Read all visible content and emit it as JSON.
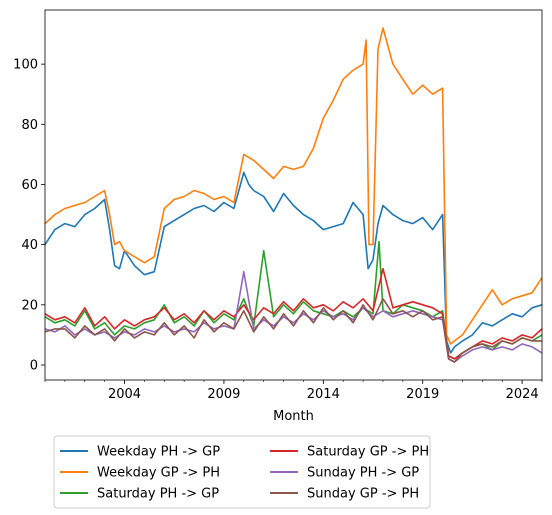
{
  "chart_data": {
    "type": "line",
    "title": "",
    "xlabel": "Month",
    "ylabel": "",
    "xlim": [
      2000.0,
      2025.0
    ],
    "ylim": [
      -5,
      118
    ],
    "x_ticks": [
      2004,
      2009,
      2014,
      2019,
      2024
    ],
    "y_ticks": [
      0,
      20,
      40,
      60,
      80,
      100
    ],
    "grid": false,
    "legend_position": "below-chart",
    "legend_columns": 2,
    "series": [
      {
        "name": "Weekday PH -> GP",
        "color": "#1f77b4",
        "x": [
          2000.0,
          2000.5,
          2001.0,
          2001.5,
          2002.0,
          2002.5,
          2003.0,
          2003.25,
          2003.5,
          2003.75,
          2004.0,
          2004.5,
          2005.0,
          2005.5,
          2006.0,
          2006.5,
          2007.0,
          2007.5,
          2008.0,
          2008.5,
          2009.0,
          2009.5,
          2010.0,
          2010.25,
          2010.5,
          2011.0,
          2011.5,
          2012.0,
          2012.5,
          2013.0,
          2013.5,
          2014.0,
          2014.5,
          2015.0,
          2015.5,
          2016.0,
          2016.25,
          2016.5,
          2016.75,
          2017.0,
          2017.5,
          2018.0,
          2018.5,
          2019.0,
          2019.5,
          2020.0,
          2020.2,
          2020.4,
          2020.6,
          2021.0,
          2021.5,
          2022.0,
          2022.5,
          2023.0,
          2023.5,
          2024.0,
          2024.5,
          2025.0
        ],
        "y": [
          40,
          45,
          47,
          46,
          50,
          52,
          55,
          45,
          33,
          32,
          38,
          33,
          30,
          31,
          46,
          48,
          50,
          52,
          53,
          51,
          54,
          52,
          64,
          60,
          58,
          56,
          51,
          57,
          53,
          50,
          48,
          45,
          46,
          47,
          54,
          50,
          32,
          35,
          47,
          53,
          50,
          48,
          47,
          49,
          45,
          50,
          8,
          4,
          6,
          8,
          10,
          14,
          13,
          15,
          17,
          16,
          19,
          20
        ]
      },
      {
        "name": "Weekday GP -> PH",
        "color": "#ff7f0e",
        "x": [
          2000.0,
          2000.5,
          2001.0,
          2001.5,
          2002.0,
          2002.5,
          2003.0,
          2003.25,
          2003.5,
          2003.75,
          2004.0,
          2004.5,
          2005.0,
          2005.5,
          2006.0,
          2006.5,
          2007.0,
          2007.5,
          2008.0,
          2008.5,
          2009.0,
          2009.5,
          2010.0,
          2010.5,
          2011.0,
          2011.5,
          2012.0,
          2012.5,
          2013.0,
          2013.5,
          2014.0,
          2014.5,
          2015.0,
          2015.5,
          2016.0,
          2016.15,
          2016.3,
          2016.5,
          2016.75,
          2017.0,
          2017.5,
          2018.0,
          2018.5,
          2019.0,
          2019.5,
          2020.0,
          2020.2,
          2020.4,
          2020.6,
          2021.0,
          2021.5,
          2022.0,
          2022.5,
          2023.0,
          2023.5,
          2024.0,
          2024.5,
          2025.0
        ],
        "y": [
          47,
          50,
          52,
          53,
          54,
          56,
          58,
          50,
          40,
          41,
          38,
          36,
          34,
          36,
          52,
          55,
          56,
          58,
          57,
          55,
          56,
          54,
          70,
          68,
          65,
          62,
          66,
          65,
          66,
          72,
          82,
          88,
          95,
          98,
          100,
          108,
          40,
          40,
          105,
          112,
          100,
          95,
          90,
          93,
          90,
          92,
          10,
          7,
          8,
          10,
          15,
          20,
          25,
          20,
          22,
          23,
          24,
          29
        ]
      },
      {
        "name": "Saturday PH -> GP",
        "color": "#2ca02c",
        "x": [
          2000.0,
          2000.5,
          2001.0,
          2001.5,
          2002.0,
          2002.5,
          2003.0,
          2003.5,
          2004.0,
          2004.5,
          2005.0,
          2005.5,
          2006.0,
          2006.5,
          2007.0,
          2007.5,
          2008.0,
          2008.5,
          2009.0,
          2009.5,
          2010.0,
          2010.5,
          2011.0,
          2011.5,
          2012.0,
          2012.5,
          2013.0,
          2013.5,
          2014.0,
          2014.5,
          2015.0,
          2015.5,
          2016.0,
          2016.5,
          2016.8,
          2017.0,
          2017.5,
          2018.0,
          2018.5,
          2019.0,
          2019.5,
          2020.0,
          2020.3,
          2020.6,
          2021.0,
          2021.5,
          2022.0,
          2022.5,
          2023.0,
          2023.5,
          2024.0,
          2024.5,
          2025.0
        ],
        "y": [
          16,
          14,
          15,
          13,
          18,
          12,
          14,
          10,
          13,
          12,
          14,
          15,
          20,
          14,
          16,
          13,
          18,
          14,
          17,
          15,
          22,
          13,
          38,
          16,
          20,
          17,
          21,
          18,
          17,
          16,
          18,
          16,
          19,
          17,
          41,
          18,
          17,
          20,
          19,
          18,
          16,
          18,
          3,
          2,
          4,
          6,
          7,
          5,
          8,
          7,
          9,
          8,
          10
        ]
      },
      {
        "name": "Saturday GP -> PH",
        "color": "#d62728",
        "x": [
          2000.0,
          2000.5,
          2001.0,
          2001.5,
          2002.0,
          2002.5,
          2003.0,
          2003.5,
          2004.0,
          2004.5,
          2005.0,
          2005.5,
          2006.0,
          2006.5,
          2007.0,
          2007.5,
          2008.0,
          2008.5,
          2009.0,
          2009.5,
          2010.0,
          2010.5,
          2011.0,
          2011.5,
          2012.0,
          2012.5,
          2013.0,
          2013.5,
          2014.0,
          2014.5,
          2015.0,
          2015.5,
          2016.0,
          2016.5,
          2017.0,
          2017.5,
          2018.0,
          2018.5,
          2019.0,
          2019.5,
          2020.0,
          2020.3,
          2020.6,
          2021.0,
          2021.5,
          2022.0,
          2022.5,
          2023.0,
          2023.5,
          2024.0,
          2024.5,
          2025.0
        ],
        "y": [
          17,
          15,
          16,
          14,
          19,
          13,
          16,
          12,
          15,
          13,
          15,
          16,
          19,
          15,
          17,
          14,
          18,
          15,
          18,
          16,
          20,
          15,
          19,
          17,
          21,
          18,
          22,
          19,
          20,
          18,
          21,
          19,
          22,
          18,
          32,
          19,
          20,
          21,
          20,
          19,
          17,
          3,
          2,
          4,
          6,
          8,
          7,
          9,
          8,
          10,
          9,
          12
        ]
      },
      {
        "name": "Sunday PH -> GP",
        "color": "#9467bd",
        "x": [
          2000.0,
          2000.5,
          2001.0,
          2001.5,
          2002.0,
          2002.5,
          2003.0,
          2003.5,
          2004.0,
          2004.5,
          2005.0,
          2005.5,
          2006.0,
          2006.5,
          2007.0,
          2007.5,
          2008.0,
          2008.5,
          2009.0,
          2009.5,
          2010.0,
          2010.5,
          2011.0,
          2011.5,
          2012.0,
          2012.5,
          2013.0,
          2013.5,
          2014.0,
          2014.5,
          2015.0,
          2015.5,
          2016.0,
          2016.5,
          2017.0,
          2017.5,
          2018.0,
          2018.5,
          2019.0,
          2019.5,
          2020.0,
          2020.3,
          2020.6,
          2021.0,
          2021.5,
          2022.0,
          2022.5,
          2023.0,
          2023.5,
          2024.0,
          2024.5,
          2025.0
        ],
        "y": [
          12,
          11,
          13,
          10,
          12,
          10,
          11,
          9,
          11,
          10,
          12,
          11,
          13,
          11,
          12,
          11,
          14,
          12,
          13,
          12,
          31,
          12,
          15,
          13,
          16,
          14,
          17,
          15,
          18,
          16,
          17,
          15,
          19,
          16,
          18,
          16,
          17,
          18,
          17,
          16,
          15,
          2,
          1,
          3,
          5,
          6,
          5,
          6,
          5,
          7,
          6,
          4
        ]
      },
      {
        "name": "Sunday GP -> PH",
        "color": "#8c564b",
        "x": [
          2000.0,
          2000.5,
          2001.0,
          2001.5,
          2002.0,
          2002.5,
          2003.0,
          2003.5,
          2004.0,
          2004.5,
          2005.0,
          2005.5,
          2006.0,
          2006.5,
          2007.0,
          2007.5,
          2008.0,
          2008.5,
          2009.0,
          2009.5,
          2010.0,
          2010.5,
          2011.0,
          2011.5,
          2012.0,
          2012.5,
          2013.0,
          2013.5,
          2014.0,
          2014.5,
          2015.0,
          2015.5,
          2016.0,
          2016.5,
          2017.0,
          2017.5,
          2018.0,
          2018.5,
          2019.0,
          2019.5,
          2020.0,
          2020.3,
          2020.6,
          2021.0,
          2021.5,
          2022.0,
          2022.5,
          2023.0,
          2023.5,
          2024.0,
          2024.5,
          2025.0
        ],
        "y": [
          11,
          12,
          12,
          9,
          13,
          10,
          12,
          8,
          12,
          9,
          11,
          10,
          14,
          10,
          13,
          9,
          15,
          11,
          14,
          12,
          18,
          11,
          16,
          12,
          17,
          13,
          18,
          14,
          19,
          15,
          18,
          14,
          20,
          15,
          22,
          17,
          18,
          16,
          18,
          15,
          16,
          2,
          1,
          4,
          6,
          7,
          6,
          8,
          7,
          9,
          8,
          8
        ]
      }
    ]
  }
}
